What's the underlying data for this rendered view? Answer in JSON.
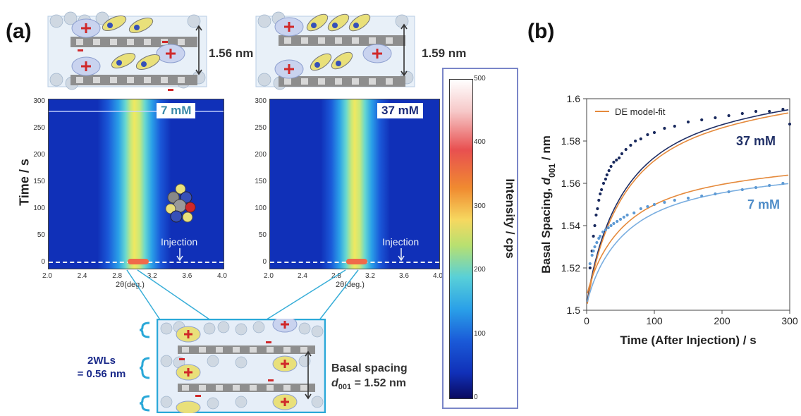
{
  "panel_a": {
    "label": "(a)",
    "y_axis_title": "Time / s",
    "x_axis_title": "2θ(deg.)",
    "x_ticks": [
      "2.0",
      "2.4",
      "2.8",
      "3.2",
      "3.6",
      "4.0"
    ],
    "y_ticks": [
      "0",
      "50",
      "100",
      "150",
      "200",
      "250",
      "300"
    ],
    "left_map": {
      "concentration": "7 mM",
      "injection_label": "Injection",
      "spacing": "1.56 nm"
    },
    "right_map": {
      "concentration": "37 mM",
      "injection_label": "Injection",
      "spacing": "1.59 nm"
    },
    "colorbar": {
      "title": "Intensity / cps",
      "ticks": [
        "500",
        "400",
        "300",
        "200",
        "100",
        "0"
      ]
    },
    "bottom_schematic": {
      "water_layers": "2WLs\n= 0.56 nm",
      "basal_line1": "Basal spacing",
      "basal_line2_prefix": "d",
      "basal_line2_sub": "001",
      "basal_line2_suffix": " = 1.52 nm"
    }
  },
  "panel_b": {
    "label": "(b)",
    "legend_label": "DE model-fit",
    "series_label_37": "37 mM",
    "series_label_7": "7 mM",
    "colors": {
      "dark_points": "#1a2a5e",
      "light_points": "#5e9ad4",
      "fit_orange": "#e58a3c",
      "fit_dark": "#1f2f66",
      "fit_light": "#7aaee0"
    }
  },
  "chart_data": {
    "type": "scatter",
    "xlabel": "Time (After Injection) / s",
    "ylabel_prefix": "Basal Spacing, ",
    "ylabel_var": "d",
    "ylabel_sub": "001",
    "ylabel_suffix": " / nm",
    "xlim": [
      0,
      300
    ],
    "ylim": [
      1.5,
      1.6
    ],
    "x_ticks": [
      0,
      100,
      200,
      300
    ],
    "y_ticks": [
      1.5,
      1.52,
      1.54,
      1.56,
      1.58,
      1.6
    ],
    "y_tick_labels": [
      "1.5",
      "1.52",
      "1.54",
      "1.56",
      "1.58",
      "1.6"
    ],
    "x_tick_labels": [
      "0",
      "100",
      "200",
      "300"
    ],
    "series": [
      {
        "name": "37 mM",
        "fit_end": 1.595,
        "points": [
          [
            5,
            1.52
          ],
          [
            8,
            1.528
          ],
          [
            10,
            1.535
          ],
          [
            12,
            1.54
          ],
          [
            14,
            1.545
          ],
          [
            16,
            1.548
          ],
          [
            18,
            1.552
          ],
          [
            20,
            1.555
          ],
          [
            22,
            1.557
          ],
          [
            25,
            1.56
          ],
          [
            28,
            1.562
          ],
          [
            30,
            1.564
          ],
          [
            33,
            1.566
          ],
          [
            36,
            1.568
          ],
          [
            40,
            1.57
          ],
          [
            44,
            1.571
          ],
          [
            48,
            1.572
          ],
          [
            52,
            1.574
          ],
          [
            58,
            1.576
          ],
          [
            65,
            1.578
          ],
          [
            72,
            1.58
          ],
          [
            80,
            1.581
          ],
          [
            90,
            1.583
          ],
          [
            100,
            1.584
          ],
          [
            115,
            1.586
          ],
          [
            130,
            1.587
          ],
          [
            150,
            1.589
          ],
          [
            170,
            1.59
          ],
          [
            190,
            1.591
          ],
          [
            210,
            1.592
          ],
          [
            230,
            1.593
          ],
          [
            250,
            1.594
          ],
          [
            270,
            1.594
          ],
          [
            290,
            1.595
          ],
          [
            300,
            1.588
          ]
        ]
      },
      {
        "name": "7 mM",
        "fit_end": 1.56,
        "points": [
          [
            5,
            1.522
          ],
          [
            8,
            1.526
          ],
          [
            10,
            1.528
          ],
          [
            12,
            1.53
          ],
          [
            15,
            1.532
          ],
          [
            18,
            1.534
          ],
          [
            20,
            1.535
          ],
          [
            24,
            1.537
          ],
          [
            28,
            1.538
          ],
          [
            32,
            1.539
          ],
          [
            36,
            1.54
          ],
          [
            40,
            1.541
          ],
          [
            45,
            1.542
          ],
          [
            50,
            1.543
          ],
          [
            55,
            1.544
          ],
          [
            60,
            1.545
          ],
          [
            70,
            1.546
          ],
          [
            80,
            1.548
          ],
          [
            90,
            1.549
          ],
          [
            100,
            1.55
          ],
          [
            115,
            1.551
          ],
          [
            130,
            1.552
          ],
          [
            150,
            1.553
          ],
          [
            170,
            1.554
          ],
          [
            190,
            1.555
          ],
          [
            210,
            1.556
          ],
          [
            230,
            1.557
          ],
          [
            250,
            1.558
          ],
          [
            270,
            1.559
          ],
          [
            290,
            1.56
          ]
        ]
      }
    ]
  }
}
